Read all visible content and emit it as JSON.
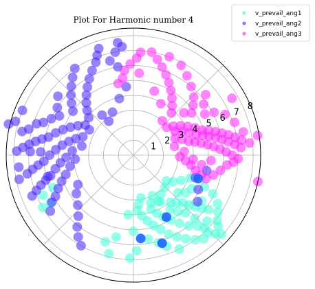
{
  "chart_data": {
    "type": "scatter",
    "projection": "polar",
    "title": "Plot For Harmonic number 4",
    "r_ticks": [
      "1",
      "2",
      "3",
      "4",
      "5",
      "6",
      "7",
      "8"
    ],
    "rlim": [
      0,
      8.5
    ],
    "angle_grid_deg": [
      0,
      45,
      90,
      135,
      180,
      225,
      270,
      315
    ],
    "grid": true,
    "legend_placement": "top-right",
    "series": [
      {
        "name": "v_prevail_ang1",
        "color": "#40ffd8",
        "points_polar": [
          [
            3.2,
            -55
          ],
          [
            3.6,
            -60
          ],
          [
            4.0,
            -52
          ],
          [
            4.3,
            -48
          ],
          [
            4.6,
            -44
          ],
          [
            5.0,
            -42
          ],
          [
            5.4,
            -40
          ],
          [
            5.8,
            -38
          ],
          [
            6.2,
            -36
          ],
          [
            6.8,
            -34
          ],
          [
            7.4,
            -40
          ],
          [
            7.9,
            -42
          ],
          [
            3.0,
            -65
          ],
          [
            3.4,
            -70
          ],
          [
            3.8,
            -72
          ],
          [
            4.2,
            -68
          ],
          [
            4.6,
            -64
          ],
          [
            5.0,
            -60
          ],
          [
            5.5,
            -56
          ],
          [
            6.0,
            -52
          ],
          [
            6.4,
            -48
          ],
          [
            6.8,
            -46
          ],
          [
            7.2,
            -46
          ],
          [
            7.6,
            -44
          ],
          [
            2.9,
            -80
          ],
          [
            3.3,
            -84
          ],
          [
            3.7,
            -86
          ],
          [
            4.1,
            -82
          ],
          [
            4.5,
            -78
          ],
          [
            4.9,
            -74
          ],
          [
            5.3,
            -70
          ],
          [
            5.8,
            -66
          ],
          [
            6.2,
            -62
          ],
          [
            6.6,
            -58
          ],
          [
            7.0,
            -54
          ],
          [
            7.3,
            -50
          ],
          [
            7.1,
            -38
          ],
          [
            6.5,
            -30
          ],
          [
            5.9,
            -26
          ],
          [
            5.2,
            -24
          ],
          [
            4.6,
            -20
          ],
          [
            4.1,
            -22
          ],
          [
            3.6,
            -28
          ],
          [
            3.2,
            -34
          ],
          [
            5.5,
            -34
          ],
          [
            5.9,
            -46
          ],
          [
            4.4,
            -56
          ],
          [
            4.8,
            -52
          ],
          [
            5.2,
            -48
          ],
          [
            6.6,
            -42
          ],
          [
            3.9,
            -40
          ],
          [
            4.3,
            -36
          ],
          [
            6.1,
            -74
          ],
          [
            6.5,
            -70
          ],
          [
            5.7,
            -80
          ],
          [
            6.4,
            -88
          ],
          [
            6.9,
            -92
          ],
          [
            5.1,
            -90
          ],
          [
            7.0,
            -64
          ],
          [
            4.0,
            -95
          ],
          [
            5.6,
            -102
          ],
          [
            6.1,
            -108
          ],
          [
            6.8,
            -104
          ],
          [
            6.4,
            -150
          ],
          [
            6.6,
            -156
          ],
          [
            7.0,
            -150
          ],
          [
            5.8,
            -158
          ],
          [
            3.0,
            -46
          ],
          [
            2.8,
            -38
          ],
          [
            3.5,
            -62
          ],
          [
            4.5,
            -30
          ]
        ],
        "points_large_polar": [
          [
            4.7,
            -62
          ],
          [
            5.6,
            -85
          ]
        ]
      },
      {
        "name": "v_prevail_ang2",
        "color": "#4020ff",
        "points_polar": [
          [
            3.4,
            150
          ],
          [
            3.8,
            148
          ],
          [
            4.2,
            152
          ],
          [
            4.6,
            156
          ],
          [
            5.0,
            160
          ],
          [
            5.4,
            164
          ],
          [
            5.8,
            168
          ],
          [
            6.2,
            170
          ],
          [
            6.6,
            172
          ],
          [
            7.0,
            174
          ],
          [
            7.4,
            176
          ],
          [
            7.8,
            178
          ],
          [
            3.6,
            160
          ],
          [
            4.0,
            164
          ],
          [
            4.4,
            168
          ],
          [
            4.8,
            172
          ],
          [
            5.2,
            176
          ],
          [
            5.6,
            180
          ],
          [
            6.0,
            184
          ],
          [
            6.4,
            186
          ],
          [
            6.8,
            188
          ],
          [
            7.2,
            190
          ],
          [
            3.9,
            140
          ],
          [
            4.3,
            136
          ],
          [
            4.7,
            132
          ],
          [
            5.1,
            128
          ],
          [
            5.5,
            124
          ],
          [
            5.9,
            120
          ],
          [
            6.3,
            116
          ],
          [
            6.7,
            112
          ],
          [
            7.1,
            110
          ],
          [
            7.5,
            108
          ],
          [
            4.1,
            176
          ],
          [
            4.5,
            182
          ],
          [
            4.9,
            186
          ],
          [
            5.3,
            190
          ],
          [
            5.7,
            194
          ],
          [
            6.1,
            196
          ],
          [
            6.5,
            198
          ],
          [
            6.9,
            200
          ],
          [
            7.3,
            202
          ],
          [
            3.5,
            170
          ],
          [
            3.9,
            184
          ],
          [
            4.3,
            190
          ],
          [
            4.7,
            196
          ],
          [
            5.1,
            200
          ],
          [
            5.5,
            204
          ],
          [
            5.9,
            208
          ],
          [
            6.3,
            210
          ],
          [
            6.7,
            214
          ],
          [
            5.0,
            144
          ],
          [
            5.4,
            140
          ],
          [
            5.8,
            136
          ],
          [
            6.2,
            132
          ],
          [
            6.6,
            128
          ],
          [
            7.0,
            124
          ],
          [
            6.0,
            156
          ],
          [
            6.4,
            160
          ],
          [
            6.8,
            162
          ],
          [
            7.2,
            166
          ],
          [
            7.6,
            168
          ],
          [
            8.2,
            164
          ],
          [
            8.6,
            166
          ],
          [
            8.0,
            158
          ],
          [
            7.7,
            186
          ],
          [
            7.8,
            192
          ],
          [
            4.2,
            208
          ],
          [
            4.6,
            214
          ],
          [
            5.0,
            222
          ],
          [
            5.5,
            228
          ],
          [
            6.1,
            232
          ],
          [
            6.6,
            236
          ],
          [
            7.0,
            240
          ],
          [
            6.0,
            100
          ],
          [
            6.5,
            104
          ],
          [
            7.0,
            100
          ],
          [
            7.3,
            96
          ],
          [
            7.6,
            98
          ],
          [
            4.6,
            96
          ],
          [
            3.9,
            104
          ],
          [
            3.2,
            116
          ],
          [
            2.8,
            126
          ],
          [
            3.4,
            128
          ],
          [
            5.0,
            -12
          ],
          [
            4.4,
            -20
          ],
          [
            4.9,
            -28
          ],
          [
            5.3,
            -36
          ],
          [
            6.0,
            148
          ],
          [
            6.4,
            142
          ],
          [
            5.6,
            152
          ],
          [
            6.9,
            178
          ],
          [
            6.2,
            178
          ],
          [
            5.9,
            194
          ]
        ],
        "points_large_polar": [
          [
            4.6,
            -20
          ],
          [
            6.2,
            -72
          ]
        ]
      },
      {
        "name": "v_prevail_ang3",
        "color": "#ff20ff",
        "points_polar": [
          [
            3.0,
            22
          ],
          [
            3.4,
            18
          ],
          [
            3.8,
            14
          ],
          [
            4.2,
            12
          ],
          [
            4.6,
            10
          ],
          [
            5.0,
            8
          ],
          [
            5.4,
            6
          ],
          [
            5.8,
            4
          ],
          [
            6.2,
            2
          ],
          [
            6.6,
            0
          ],
          [
            7.0,
            -2
          ],
          [
            3.2,
            30
          ],
          [
            3.6,
            26
          ],
          [
            4.0,
            22
          ],
          [
            4.4,
            18
          ],
          [
            4.8,
            16
          ],
          [
            5.2,
            14
          ],
          [
            5.6,
            12
          ],
          [
            6.0,
            10
          ],
          [
            6.4,
            8
          ],
          [
            6.8,
            6
          ],
          [
            7.2,
            4
          ],
          [
            2.9,
            40
          ],
          [
            3.3,
            36
          ],
          [
            3.7,
            32
          ],
          [
            4.1,
            28
          ],
          [
            4.5,
            24
          ],
          [
            4.9,
            20
          ],
          [
            5.3,
            18
          ],
          [
            5.7,
            16
          ],
          [
            6.1,
            14
          ],
          [
            6.5,
            12
          ],
          [
            6.9,
            10
          ],
          [
            7.3,
            8
          ],
          [
            3.1,
            -2
          ],
          [
            3.5,
            -6
          ],
          [
            3.9,
            -10
          ],
          [
            4.3,
            -14
          ],
          [
            4.7,
            -16
          ],
          [
            5.1,
            -18
          ],
          [
            5.5,
            -14
          ],
          [
            5.9,
            -10
          ],
          [
            6.3,
            -6
          ],
          [
            6.7,
            -4
          ],
          [
            3.8,
            48
          ],
          [
            4.2,
            52
          ],
          [
            4.6,
            56
          ],
          [
            5.0,
            60
          ],
          [
            5.4,
            64
          ],
          [
            5.8,
            68
          ],
          [
            6.2,
            72
          ],
          [
            6.6,
            76
          ],
          [
            7.0,
            80
          ],
          [
            7.0,
            70
          ],
          [
            6.8,
            62
          ],
          [
            6.4,
            56
          ],
          [
            6.0,
            50
          ],
          [
            5.6,
            44
          ],
          [
            5.2,
            40
          ],
          [
            4.8,
            36
          ],
          [
            4.4,
            40
          ],
          [
            5.5,
            30
          ],
          [
            6.1,
            28
          ],
          [
            6.7,
            24
          ],
          [
            7.1,
            18
          ],
          [
            7.5,
            12
          ],
          [
            7.8,
            6
          ],
          [
            6.5,
            88
          ],
          [
            6.1,
            92
          ],
          [
            5.7,
            96
          ],
          [
            5.2,
            98
          ],
          [
            4.9,
            102
          ],
          [
            6.9,
            86
          ],
          [
            5.5,
            86
          ],
          [
            4.5,
            72
          ],
          [
            3.9,
            62
          ],
          [
            4.0,
            -4
          ],
          [
            4.6,
            -8
          ],
          [
            5.2,
            -4
          ],
          [
            3.4,
            4
          ],
          [
            2.8,
            12
          ],
          [
            8.4,
            9
          ],
          [
            7.6,
            30
          ],
          [
            8.5,
            -12
          ],
          [
            3.0,
            50
          ],
          [
            5.8,
            36
          ],
          [
            6.3,
            40
          ]
        ],
        "points_large_polar": []
      }
    ]
  }
}
